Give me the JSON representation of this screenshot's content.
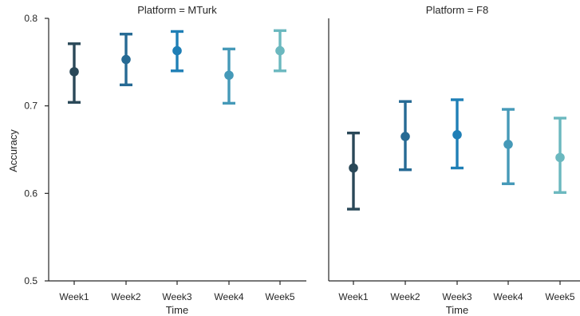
{
  "colors": {
    "Week1": "#2a4858",
    "Week2": "#266a94",
    "Week3": "#1f7fb6",
    "Week4": "#4599b8",
    "Week5": "#6bb8bf"
  },
  "chart_data": {
    "type": "pointplot",
    "facet_variable": "Platform",
    "categories": [
      "Week1",
      "Week2",
      "Week3",
      "Week4",
      "Week5"
    ],
    "xlabel": "Time",
    "ylabel": "Accuracy",
    "ylim": [
      0.5,
      0.8
    ],
    "yticks": [
      "0.5",
      "0.6",
      "0.7",
      "0.8"
    ],
    "grid": false,
    "panels": [
      {
        "title": "Platform = MTurk",
        "values": [
          0.739,
          0.753,
          0.763,
          0.735,
          0.763
        ],
        "ci_low": [
          0.704,
          0.724,
          0.74,
          0.703,
          0.74
        ],
        "ci_high": [
          0.771,
          0.782,
          0.785,
          0.765,
          0.786
        ]
      },
      {
        "title": "Platform = F8",
        "values": [
          0.629,
          0.665,
          0.667,
          0.656,
          0.641
        ],
        "ci_low": [
          0.582,
          0.627,
          0.629,
          0.611,
          0.601
        ],
        "ci_high": [
          0.669,
          0.705,
          0.707,
          0.696,
          0.686
        ]
      }
    ]
  }
}
